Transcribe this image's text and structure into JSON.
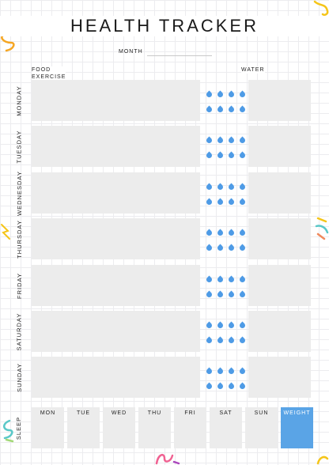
{
  "title": "HEALTH TRACKER",
  "month_label": "MONTH",
  "columns": {
    "food_exercise": "FOOD\nEXERCISE",
    "water": "WATER"
  },
  "days": [
    "MONDAY",
    "TUESDAY",
    "WEDNESDAY",
    "THURSDAY",
    "FRIDAY",
    "SATURDAY",
    "SUNDAY"
  ],
  "drops_per_day": 8,
  "sleep_label": "SLEEP",
  "weekdays": [
    "MON",
    "TUE",
    "WED",
    "THU",
    "FRI",
    "SAT",
    "SUN"
  ],
  "weight_label": "WEIGHT",
  "colors": {
    "drop": "#4e9be6",
    "weight_accent": "#5aa4e6",
    "box": "#ececec"
  },
  "icons": {
    "drop": "water-drop-icon"
  }
}
